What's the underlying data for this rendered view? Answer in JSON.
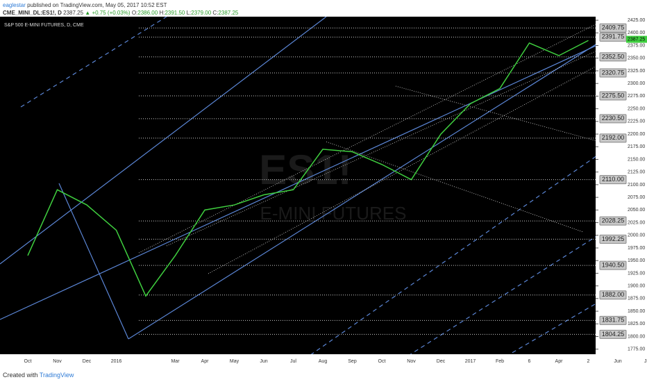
{
  "header": {
    "user": "eaglestar",
    "published": "published on TradingView.com, May 05, 2017 10:52 EST",
    "symbol": "CME_MINI_DL:ES1!, D",
    "price": "2387.25",
    "change": "▲ +0.75 (+0.03%)",
    "o_label": "O:",
    "o": "2386.00",
    "h_label": "H:",
    "h": "2391.50",
    "l_label": "L:",
    "l": "2379.00",
    "c_label": "C:",
    "c": "2387.25"
  },
  "chart_data": {
    "type": "line",
    "title": "S&P 500 E-MINI FUTURES, D, CME",
    "watermark": "ES1!",
    "watermark_sub": "E-MINI FUTURES",
    "categories": [
      "Oct",
      "Nov",
      "Dec",
      "2016",
      null,
      "Mar",
      "Apr",
      "May",
      "Jun",
      "Jul",
      "Aug",
      "Sep",
      "Oct",
      "Nov",
      "Dec",
      "2017",
      "Feb",
      "6",
      "Apr",
      "2",
      "Jun",
      "Jul"
    ],
    "series": [
      {
        "name": "ES1!",
        "color": "#3fcf3f",
        "values": [
          1960,
          2090,
          2060,
          2010,
          1880,
          1960,
          2050,
          2060,
          2080,
          2090,
          2170,
          2165,
          2140,
          2110,
          2200,
          2260,
          2290,
          2380,
          2355,
          2385,
          null,
          null
        ]
      }
    ],
    "ylim": [
      1765,
      2432
    ],
    "yticks": [
      {
        "value": 2425,
        "label": "2425.00"
      },
      {
        "value": 2400,
        "label": "2400.00"
      },
      {
        "value": 2375,
        "label": "2375.00"
      },
      {
        "value": 2350,
        "label": "2350.00"
      },
      {
        "value": 2325,
        "label": "2325.00"
      },
      {
        "value": 2300,
        "label": "2300.00"
      },
      {
        "value": 2275,
        "label": "2275.00"
      },
      {
        "value": 2250,
        "label": "2250.00"
      },
      {
        "value": 2225,
        "label": "2225.00"
      },
      {
        "value": 2200,
        "label": "2200.00"
      },
      {
        "value": 2175,
        "label": "2175.00"
      },
      {
        "value": 2150,
        "label": "2150.00"
      },
      {
        "value": 2125,
        "label": "2125.00"
      },
      {
        "value": 2100,
        "label": "2100.00"
      },
      {
        "value": 2075,
        "label": "2075.00"
      },
      {
        "value": 2050,
        "label": "2050.00"
      },
      {
        "value": 2025,
        "label": "2025.00"
      },
      {
        "value": 2000,
        "label": "2000.00"
      },
      {
        "value": 1975,
        "label": "1975.00"
      },
      {
        "value": 1950,
        "label": "1950.00"
      },
      {
        "value": 1925,
        "label": "1925.00"
      },
      {
        "value": 1900,
        "label": "1900.00"
      },
      {
        "value": 1875,
        "label": "1875.00"
      },
      {
        "value": 1850,
        "label": "1850.00"
      },
      {
        "value": 1825,
        "label": "1825.00"
      },
      {
        "value": 1800,
        "label": "1800.00"
      },
      {
        "value": 1775,
        "label": "1775.00"
      }
    ],
    "levels": [
      {
        "value": 2409.75,
        "label": "2409.75"
      },
      {
        "value": 2391.75,
        "label": "2391.75"
      },
      {
        "value": 2352.5,
        "label": "2352.50"
      },
      {
        "value": 2320.75,
        "label": "2320.75"
      },
      {
        "value": 2275.5,
        "label": "2275.50"
      },
      {
        "value": 2230.5,
        "label": "2230.50"
      },
      {
        "value": 2192,
        "label": "2192.00"
      },
      {
        "value": 2110,
        "label": "2110.00"
      },
      {
        "value": 2028.25,
        "label": "2028.25"
      },
      {
        "value": 1992.25,
        "label": "1992.25"
      },
      {
        "value": 1940.5,
        "label": "1940.50"
      },
      {
        "value": 1882,
        "label": "1882.00"
      },
      {
        "value": 1831.75,
        "label": "1831.75"
      },
      {
        "value": 1804.25,
        "label": "1804.25"
      }
    ],
    "last_price": {
      "value": 2387.25,
      "label": "2387.25"
    }
  },
  "footer": {
    "created": "Created with",
    "brand": "TradingView"
  }
}
